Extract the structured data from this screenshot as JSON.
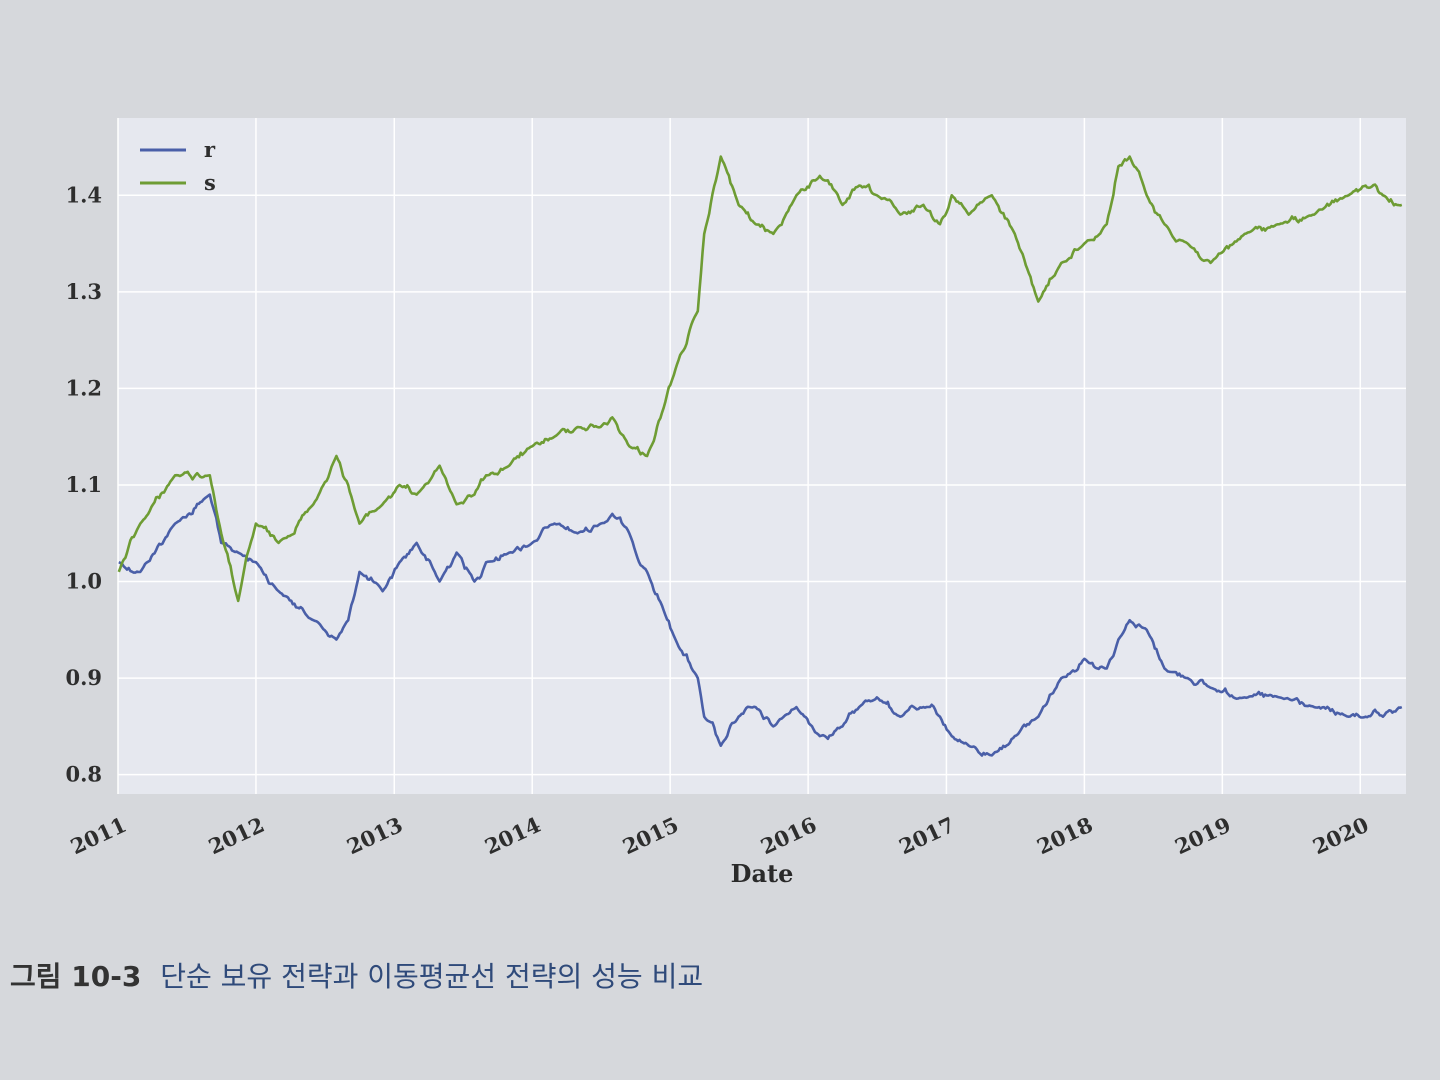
{
  "chart_data": {
    "type": "line",
    "xlabel": "Date",
    "ylabel": "",
    "x_domain": [
      "2011-01-01",
      "2020-05-01"
    ],
    "ylim": [
      0.78,
      1.48
    ],
    "yticks": [
      0.8,
      0.9,
      1.0,
      1.1,
      1.2,
      1.3,
      1.4
    ],
    "ytick_labels": [
      "0.8",
      "0.9",
      "1.0",
      "1.1",
      "1.2",
      "1.3",
      "1.4"
    ],
    "xticks": [
      "2011",
      "2012",
      "2013",
      "2014",
      "2015",
      "2016",
      "2017",
      "2018",
      "2019",
      "2020"
    ],
    "grid": true,
    "legend_position": "top-left",
    "series": [
      {
        "name": "r",
        "color": "#4a5fa8",
        "x": [
          "2011-01-03",
          "2011-03-01",
          "2011-06-01",
          "2011-09-01",
          "2011-10-01",
          "2011-11-15",
          "2012-01-01",
          "2012-03-01",
          "2012-06-01",
          "2012-08-01",
          "2012-09-01",
          "2012-10-01",
          "2012-12-01",
          "2013-01-15",
          "2013-03-01",
          "2013-05-01",
          "2013-06-15",
          "2013-08-01",
          "2013-09-01",
          "2013-11-01",
          "2014-01-01",
          "2014-03-01",
          "2014-05-01",
          "2014-07-01",
          "2014-08-01",
          "2014-09-15",
          "2014-11-01",
          "2014-12-15",
          "2015-01-15",
          "2015-03-15",
          "2015-04-01",
          "2015-05-15",
          "2015-07-01",
          "2015-08-15",
          "2015-10-01",
          "2015-12-01",
          "2016-02-01",
          "2016-04-01",
          "2016-05-15",
          "2016-07-01",
          "2016-09-01",
          "2016-11-01",
          "2016-12-15",
          "2017-01-15",
          "2017-03-01",
          "2017-05-01",
          "2017-07-01",
          "2017-09-01",
          "2017-11-01",
          "2018-01-01",
          "2018-03-01",
          "2018-04-01",
          "2018-05-01",
          "2018-06-15",
          "2018-08-01",
          "2018-10-01",
          "2018-12-01",
          "2019-03-01",
          "2019-06-01",
          "2019-09-01",
          "2019-12-01",
          "2020-01-15",
          "2020-03-01",
          "2020-04-20"
        ],
        "y": [
          1.02,
          1.01,
          1.06,
          1.09,
          1.04,
          1.03,
          1.02,
          0.99,
          0.96,
          0.94,
          0.96,
          1.01,
          0.99,
          1.02,
          1.04,
          1.0,
          1.03,
          1.0,
          1.02,
          1.03,
          1.04,
          1.06,
          1.05,
          1.06,
          1.07,
          1.05,
          1.01,
          0.97,
          0.94,
          0.9,
          0.86,
          0.83,
          0.86,
          0.87,
          0.85,
          0.87,
          0.84,
          0.85,
          0.87,
          0.88,
          0.86,
          0.87,
          0.86,
          0.84,
          0.83,
          0.82,
          0.84,
          0.86,
          0.9,
          0.92,
          0.91,
          0.94,
          0.96,
          0.95,
          0.91,
          0.9,
          0.89,
          0.88,
          0.88,
          0.87,
          0.86,
          0.86,
          0.86,
          0.87
        ]
      },
      {
        "name": "s",
        "color": "#6e9c34",
        "x": [
          "2011-01-03",
          "2011-03-01",
          "2011-06-01",
          "2011-09-01",
          "2011-10-01",
          "2011-11-15",
          "2012-01-01",
          "2012-03-01",
          "2012-06-01",
          "2012-08-01",
          "2012-09-01",
          "2012-10-01",
          "2012-12-01",
          "2013-01-15",
          "2013-03-01",
          "2013-05-01",
          "2013-06-15",
          "2013-08-01",
          "2013-09-01",
          "2013-11-01",
          "2014-01-01",
          "2014-03-01",
          "2014-05-01",
          "2014-07-01",
          "2014-08-01",
          "2014-09-15",
          "2014-11-01",
          "2014-12-15",
          "2015-01-15",
          "2015-03-15",
          "2015-04-01",
          "2015-05-15",
          "2015-07-01",
          "2015-08-15",
          "2015-10-01",
          "2015-12-01",
          "2016-02-01",
          "2016-04-01",
          "2016-05-15",
          "2016-07-01",
          "2016-09-01",
          "2016-11-01",
          "2016-12-15",
          "2017-01-15",
          "2017-03-01",
          "2017-05-01",
          "2017-07-01",
          "2017-09-01",
          "2017-11-01",
          "2018-01-01",
          "2018-03-01",
          "2018-04-01",
          "2018-05-01",
          "2018-06-15",
          "2018-08-01",
          "2018-10-01",
          "2018-12-01",
          "2019-03-01",
          "2019-06-01",
          "2019-09-01",
          "2019-12-01",
          "2020-01-15",
          "2020-03-01",
          "2020-04-20"
        ],
        "y": [
          1.01,
          1.06,
          1.11,
          1.11,
          1.05,
          0.98,
          1.06,
          1.04,
          1.08,
          1.13,
          1.1,
          1.06,
          1.08,
          1.1,
          1.09,
          1.12,
          1.08,
          1.09,
          1.11,
          1.12,
          1.14,
          1.15,
          1.16,
          1.16,
          1.17,
          1.14,
          1.13,
          1.18,
          1.22,
          1.28,
          1.36,
          1.44,
          1.39,
          1.37,
          1.36,
          1.4,
          1.42,
          1.39,
          1.41,
          1.4,
          1.38,
          1.39,
          1.37,
          1.4,
          1.38,
          1.4,
          1.36,
          1.29,
          1.33,
          1.35,
          1.37,
          1.43,
          1.44,
          1.4,
          1.37,
          1.35,
          1.33,
          1.36,
          1.37,
          1.38,
          1.4,
          1.41,
          1.4,
          1.39
        ]
      }
    ]
  },
  "caption": {
    "number": "그림 10-3",
    "text": "단순 보유 전략과 이동평균선 전략의 성능 비교"
  }
}
